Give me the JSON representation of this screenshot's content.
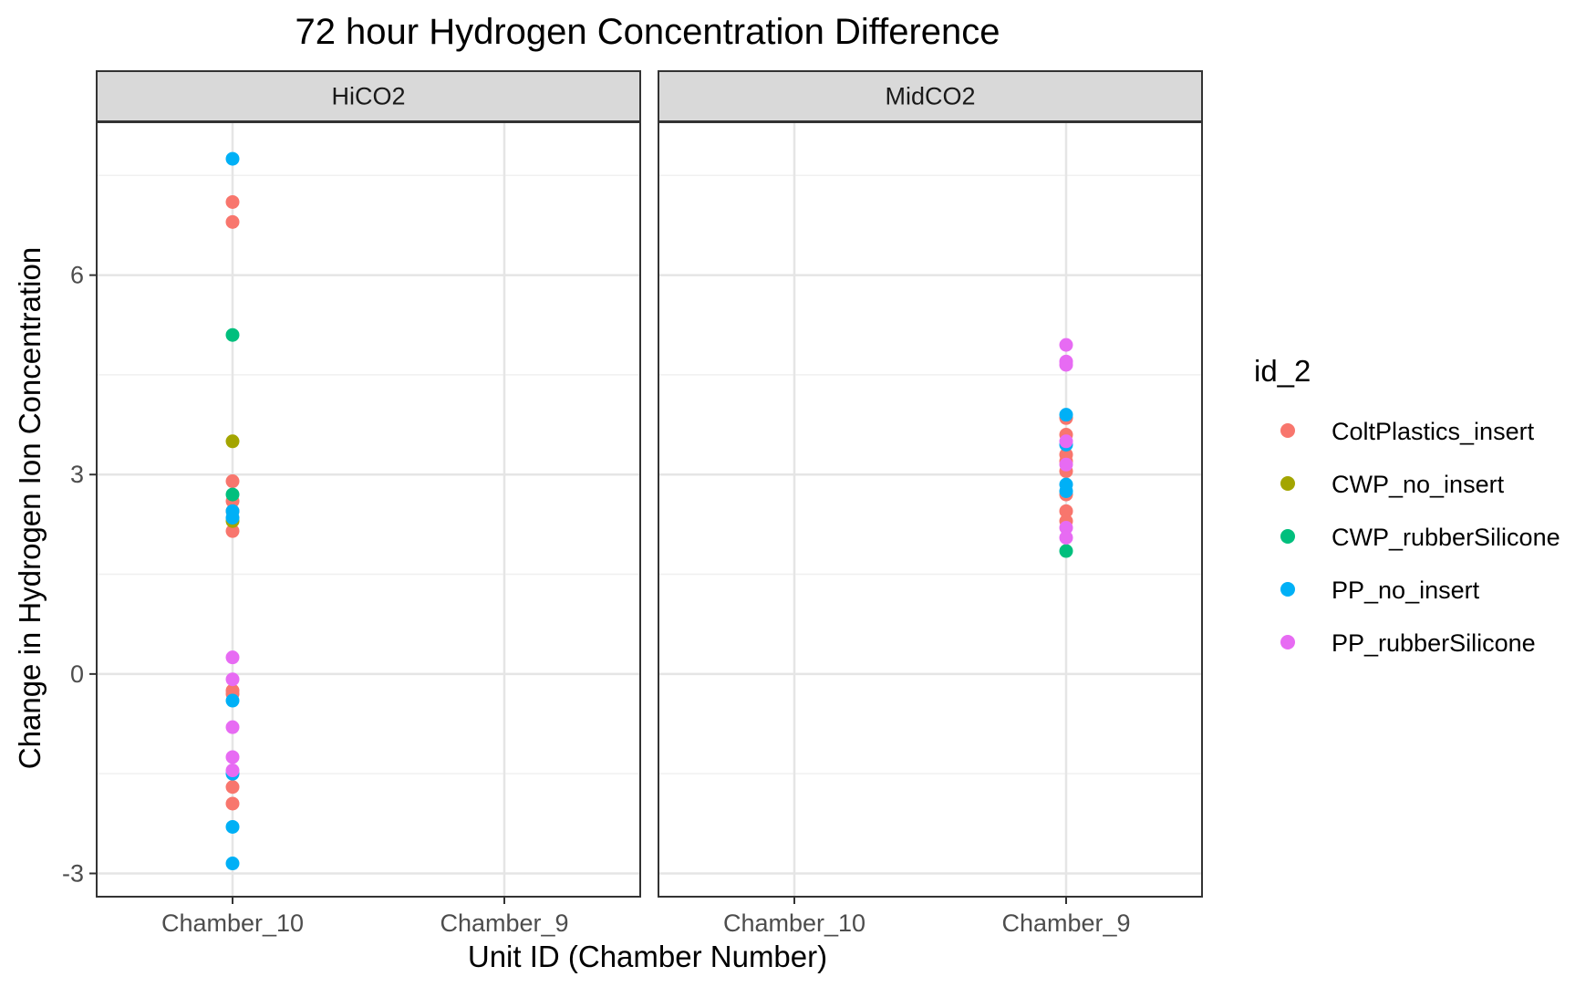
{
  "chart_data": {
    "type": "scatter",
    "title": "72 hour Hydrogen Concentration Difference",
    "xlabel": "Unit ID (Chamber Number)",
    "ylabel": "Change in Hydrogen Ion Concentration",
    "categories": [
      "Chamber_10",
      "Chamber_9"
    ],
    "ylim": [
      -3.35,
      8.3
    ],
    "yticks": [
      -3,
      0,
      3,
      6
    ],
    "ytick_labels": [
      "-3",
      "0",
      "3",
      "6"
    ],
    "grid": true,
    "legend": {
      "title": "id_2",
      "position": "right"
    },
    "colors": {
      "ColtPlastics_insert": "#F8766D",
      "CWP_no_insert": "#A3A500",
      "CWP_rubberSilicone": "#00BF7D",
      "PP_no_insert": "#00B0F6",
      "PP_rubberSilicone": "#E76BF3"
    },
    "panels": [
      {
        "strip": "HiCO2",
        "series": [
          {
            "name": "ColtPlastics_insert",
            "x": "Chamber_10",
            "values": [
              7.1,
              6.8,
              2.9,
              2.6,
              2.45,
              2.15,
              -0.25,
              -0.3,
              -1.7,
              -1.95
            ]
          },
          {
            "name": "CWP_no_insert",
            "x": "Chamber_10",
            "values": [
              3.5,
              2.3
            ]
          },
          {
            "name": "CWP_rubberSilicone",
            "x": "Chamber_10",
            "values": [
              5.1,
              2.7
            ]
          },
          {
            "name": "PP_no_insert",
            "x": "Chamber_10",
            "values": [
              7.75,
              2.45,
              2.35,
              -0.4,
              -1.5,
              -2.3,
              -2.85
            ]
          },
          {
            "name": "PP_rubberSilicone",
            "x": "Chamber_10",
            "values": [
              0.25,
              -0.08,
              -0.8,
              -1.25,
              -1.45
            ]
          }
        ]
      },
      {
        "strip": "MidCO2",
        "series": [
          {
            "name": "ColtPlastics_insert",
            "x": "Chamber_9",
            "values": [
              3.85,
              3.6,
              3.3,
              3.2,
              3.05,
              2.7,
              2.45,
              2.3
            ]
          },
          {
            "name": "CWP_no_insert",
            "x": "Chamber_9",
            "values": []
          },
          {
            "name": "CWP_rubberSilicone",
            "x": "Chamber_9",
            "values": [
              1.85
            ]
          },
          {
            "name": "PP_no_insert",
            "x": "Chamber_9",
            "values": [
              3.9,
              3.45,
              2.85,
              2.75
            ]
          },
          {
            "name": "PP_rubberSilicone",
            "x": "Chamber_9",
            "values": [
              4.95,
              4.7,
              4.65,
              3.5,
              3.15,
              2.2,
              2.05
            ]
          }
        ]
      }
    ]
  }
}
